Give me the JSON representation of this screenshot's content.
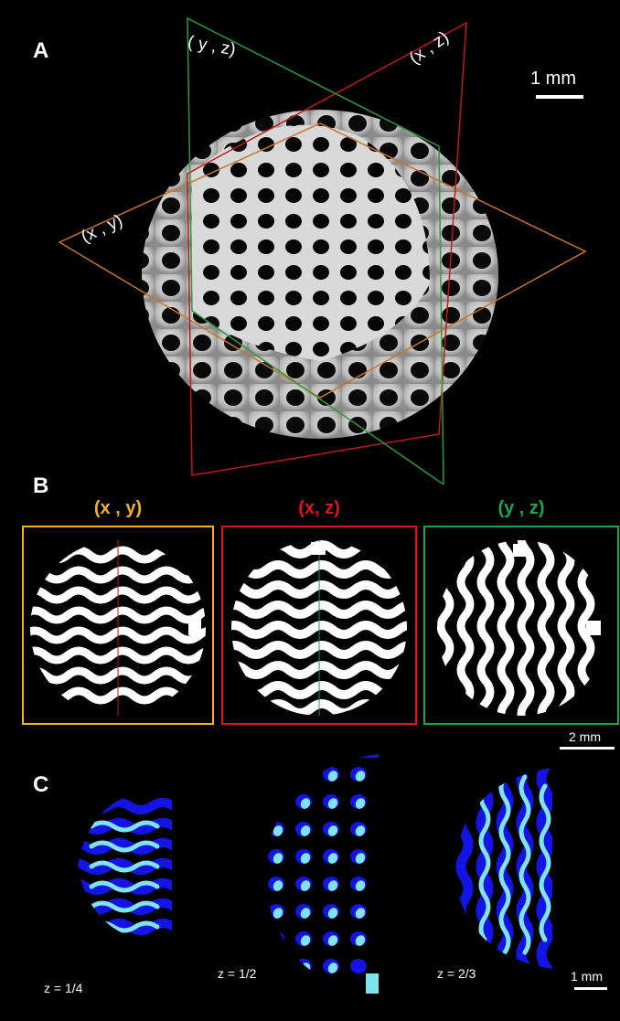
{
  "panels": {
    "a": {
      "letter": "A",
      "plane_labels": {
        "yz": "( y , z)",
        "xz": "(x , z)",
        "xy": "(x , y)"
      },
      "scale_label": "1 mm"
    },
    "b": {
      "letter": "B",
      "slices": [
        {
          "title": "(x , y)",
          "color": "#f0b21e"
        },
        {
          "title": "(x, z)",
          "color": "#e0141e"
        },
        {
          "title": "(y , z)",
          "color": "#19a84b"
        }
      ],
      "scale_label": "2 mm"
    },
    "c": {
      "letter": "C",
      "labels": [
        "z = 1/4",
        "z = 1/2",
        "z = 2/3"
      ],
      "scale_label": "1 mm",
      "colors": {
        "dark": "#1414e6",
        "light": "#7fe3f0"
      }
    }
  }
}
